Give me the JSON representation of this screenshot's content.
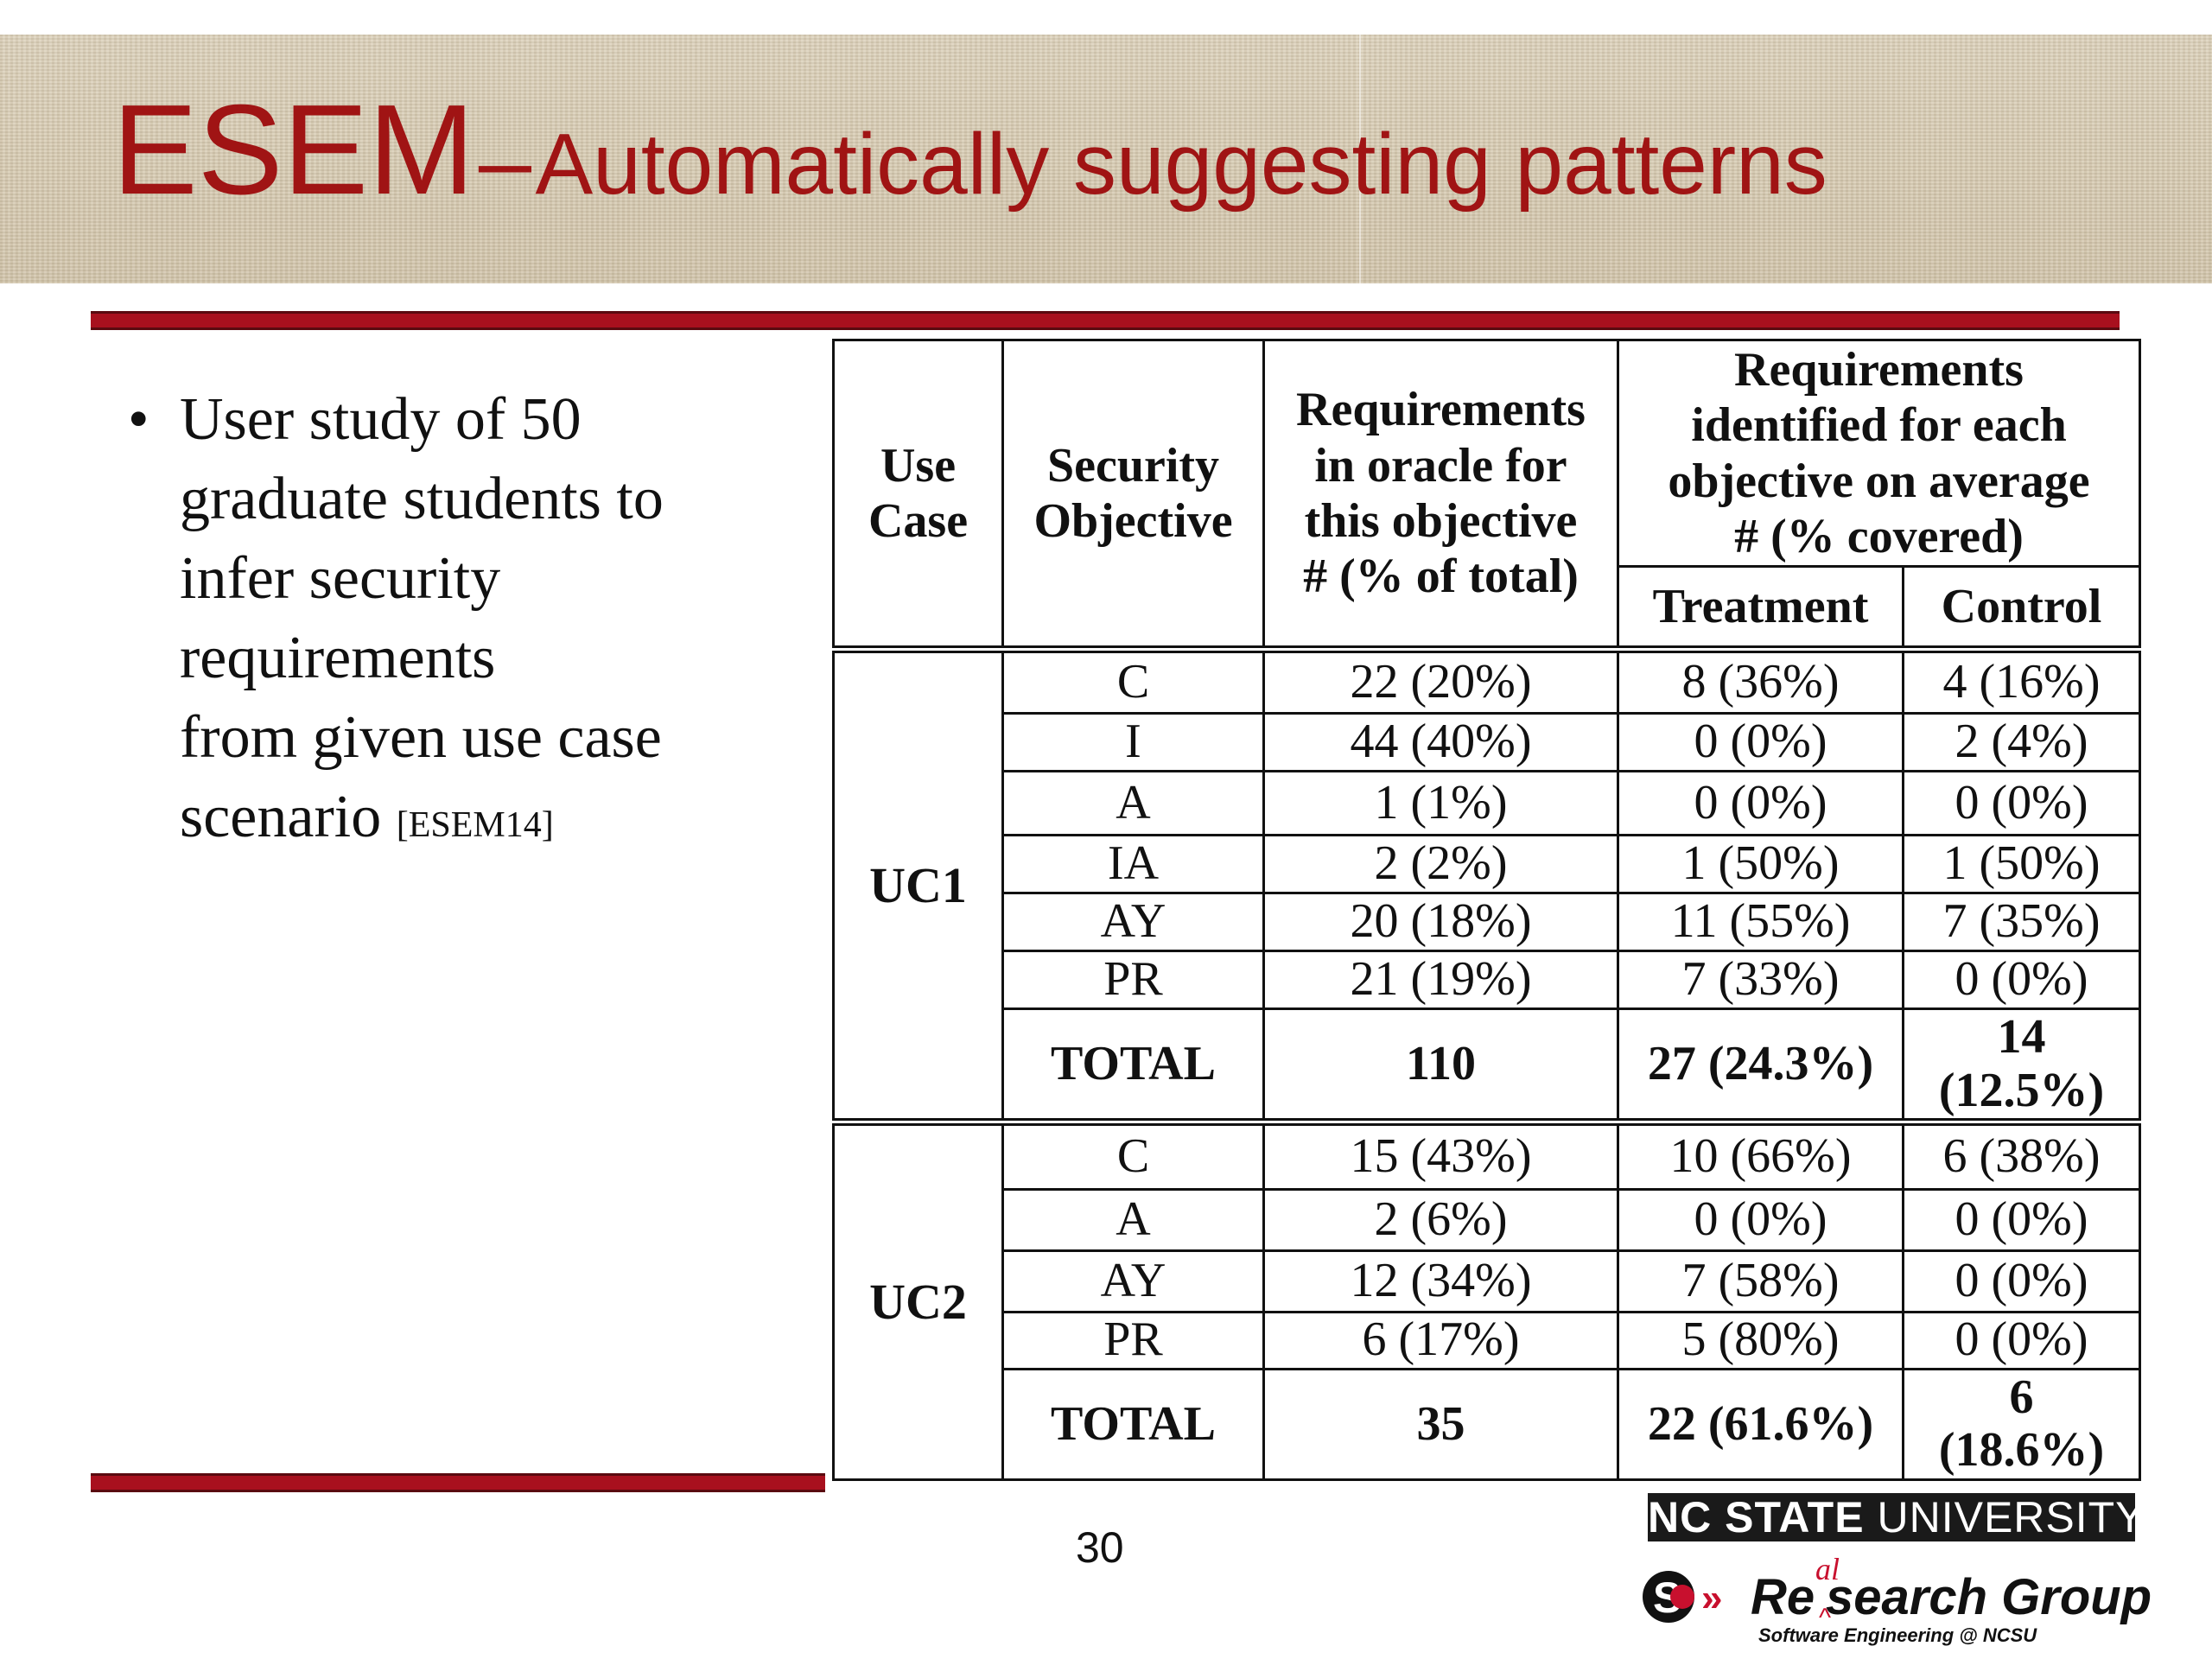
{
  "slide": {
    "title_main": "ESEM",
    "title_dash": "–",
    "title_sub": "Automatically suggesting patterns",
    "page_number": "30"
  },
  "bullet": {
    "symbol": "•",
    "lines": [
      "User study of 50",
      "graduate students to",
      "infer security",
      "requirements",
      "from given use case",
      "scenario"
    ],
    "citation": "[ESEM14]"
  },
  "table": {
    "headers": {
      "use_case": [
        "Use",
        "Case"
      ],
      "security_objective": [
        "Security",
        "Objective"
      ],
      "oracle": [
        "Requirements",
        "in oracle for",
        "this objective",
        "# (% of total)"
      ],
      "identified": [
        "Requirements",
        "identified for each",
        "objective on average",
        "# (% covered)"
      ],
      "treatment": "Treatment",
      "control": "Control"
    },
    "groups": [
      {
        "use_case": "UC1",
        "rows": [
          {
            "objective": "C",
            "oracle": "22 (20%)",
            "treatment": "8 (36%)",
            "control": "4 (16%)"
          },
          {
            "objective": "I",
            "oracle": "44 (40%)",
            "treatment": "0 (0%)",
            "control": "2 (4%)"
          },
          {
            "objective": "A",
            "oracle": "1 (1%)",
            "treatment": "0 (0%)",
            "control": "0 (0%)"
          },
          {
            "objective": "IA",
            "oracle": "2 (2%)",
            "treatment": "1 (50%)",
            "control": "1 (50%)"
          },
          {
            "objective": "AY",
            "oracle": "20 (18%)",
            "treatment": "11 (55%)",
            "control": "7 (35%)"
          },
          {
            "objective": "PR",
            "oracle": "21 (19%)",
            "treatment": "7 (33%)",
            "control": "0 (0%)"
          }
        ],
        "total": {
          "label": "TOTAL",
          "oracle": "110",
          "treatment": "27 (24.3%)",
          "control_line1": "14",
          "control_line2": "(12.5%)"
        }
      },
      {
        "use_case": "UC2",
        "rows": [
          {
            "objective": "C",
            "oracle": "15 (43%)",
            "treatment": "10 (66%)",
            "control": "6 (38%)"
          },
          {
            "objective": "A",
            "oracle": "2 (6%)",
            "treatment": "0 (0%)",
            "control": "0 (0%)"
          },
          {
            "objective": "AY",
            "oracle": "12 (34%)",
            "treatment": "7 (58%)",
            "control": "0 (0%)"
          },
          {
            "objective": "PR",
            "oracle": "6 (17%)",
            "treatment": "5 (80%)",
            "control": "0 (0%)"
          }
        ],
        "total": {
          "label": "TOTAL",
          "oracle": "35",
          "treatment": "22 (61.6%)",
          "control_line1": "6",
          "control_line2": "(18.6%)"
        }
      }
    ]
  },
  "logos": {
    "ncsu_bold": "NC STATE",
    "ncsu_rest": "UNIVERSITY",
    "group_re": "Re",
    "group_al": "al",
    "group_search": "search Group",
    "group_tagline": "Software Engineering @ NCSU"
  },
  "colors": {
    "title": "#a01414",
    "rule": "#a8101e",
    "band": "#d8ccb4"
  }
}
